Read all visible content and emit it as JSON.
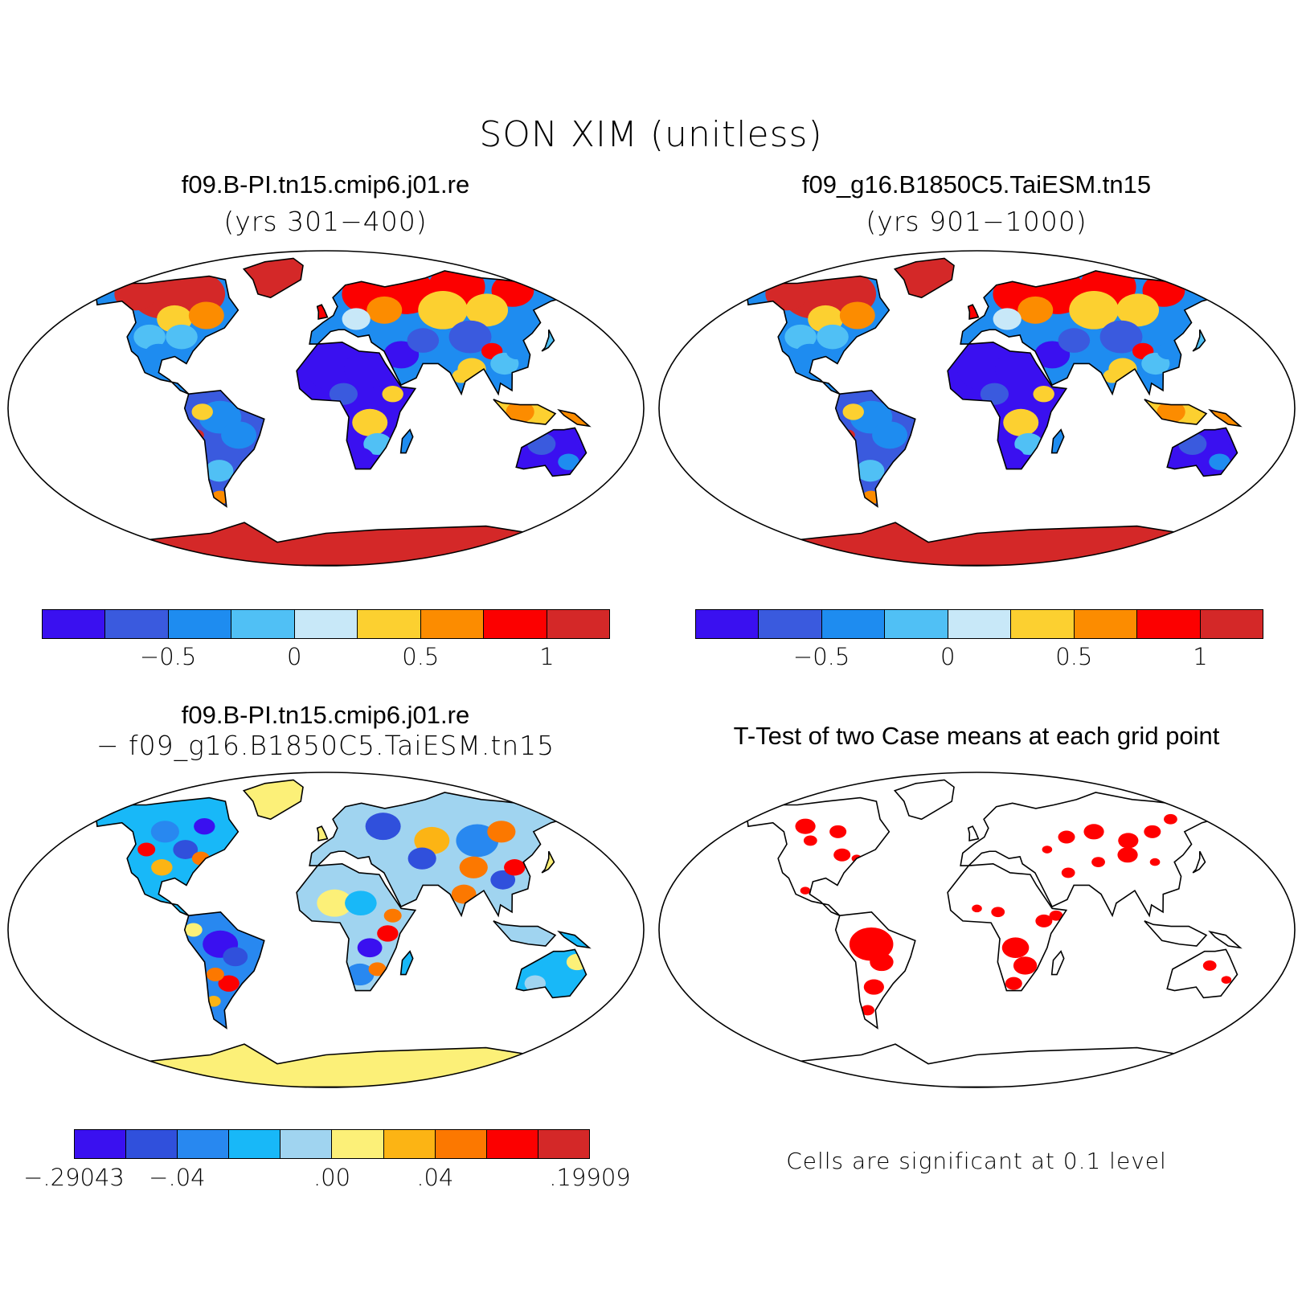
{
  "title": "SON XIM (unitless)",
  "panels": [
    {
      "id": "case1",
      "title": "f09.B-PI.tn15.cmip6.j01.re",
      "subtitle": "(yrs 301−400)",
      "palette": "absolute",
      "colorbar": {
        "colors": [
          "#3a10f0",
          "#3a5ade",
          "#1e8cf0",
          "#50c0f5",
          "#c8e8f8",
          "#fcd030",
          "#fc8c00",
          "#fc0000",
          "#d42828"
        ],
        "ticks": [
          "−0.5",
          "0",
          "0.5",
          "1"
        ]
      }
    },
    {
      "id": "case2",
      "title": "f09_g16.B1850C5.TaiESM.tn15",
      "subtitle": "(yrs 901−1000)",
      "palette": "absolute",
      "colorbar": {
        "colors": [
          "#3a10f0",
          "#3a5ade",
          "#1e8cf0",
          "#50c0f5",
          "#c8e8f8",
          "#fcd030",
          "#fc8c00",
          "#fc0000",
          "#d42828"
        ],
        "ticks": [
          "−0.5",
          "0",
          "0.5",
          "1"
        ]
      }
    },
    {
      "id": "diff",
      "title": "f09.B-PI.tn15.cmip6.j01.re",
      "subtitle": "− f09_g16.B1850C5.TaiESM.tn15",
      "palette": "difference",
      "colorbar": {
        "colors": [
          "#3a10f0",
          "#3050dc",
          "#2888f0",
          "#18b8f8",
          "#a0d4f0",
          "#fcf078",
          "#fcb414",
          "#fc7800",
          "#fc0000",
          "#d42828"
        ],
        "ticks": [
          "−.29043",
          "−.04",
          ".00",
          ".04",
          ".19909"
        ]
      }
    },
    {
      "id": "ttest",
      "title": "T-Test of two Case means at each grid point",
      "note": "Cells are significant at 0.1 level",
      "palette": "significance",
      "colors": {
        "significant": "#ff0000",
        "not_significant": "#ffffff"
      }
    }
  ]
}
